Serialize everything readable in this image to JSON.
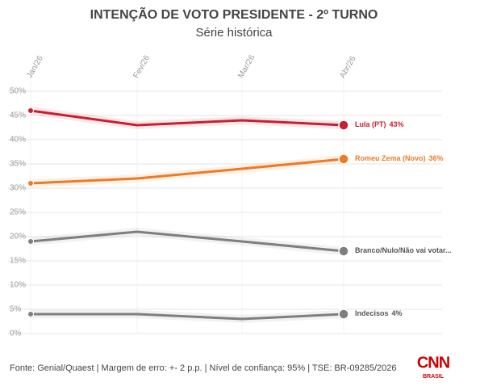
{
  "chart_data": {
    "type": "line",
    "title": "INTENÇÃO DE VOTO PRESIDENTE - 2º TURNO",
    "subtitle": "Série histórica",
    "categories": [
      "Jan/26",
      "Fev/26",
      "Mar/26",
      "Abr/26"
    ],
    "series": [
      {
        "name": "Lula (PT)",
        "color": "#c8202f",
        "values": [
          46,
          43,
          44,
          43
        ],
        "value_labels": [
          null,
          null,
          null,
          "43%"
        ]
      },
      {
        "name": "Romeu Zema (Novo)",
        "color": "#f07a22",
        "values": [
          31,
          32,
          34,
          36
        ],
        "value_labels": [
          null,
          null,
          null,
          "36%"
        ]
      },
      {
        "name": "Branco/Nulo/Não vai votar...",
        "color": "#7f7f7f",
        "values": [
          19,
          21,
          19,
          17
        ]
      },
      {
        "name": "Indecisos",
        "color": "#7f7f7f",
        "values": [
          4,
          4,
          3,
          4
        ],
        "value_labels": [
          null,
          null,
          null,
          "4%"
        ]
      }
    ],
    "ylim": [
      0,
      50
    ],
    "yticks": [
      {
        "value": 0,
        "label": "0%"
      },
      {
        "value": 5,
        "label": "5%"
      },
      {
        "value": 10,
        "label": "10%"
      },
      {
        "value": 15,
        "label": "15%"
      },
      {
        "value": 20,
        "label": "20%"
      },
      {
        "value": 25,
        "label": "25%"
      },
      {
        "value": 30,
        "label": "30%"
      },
      {
        "value": 35,
        "label": "35%"
      },
      {
        "value": 40,
        "label": "40%"
      },
      {
        "value": 45,
        "label": "45%"
      },
      {
        "value": 50,
        "label": "50%"
      }
    ],
    "grid": true,
    "source": "Fonte: Genial/Quaest | Margem de erro: +- 2 p.p. | Nível de confiança: 95% | TSE: BR-09285/2026",
    "logo": {
      "name": "CNN",
      "sub": "BRASIL"
    }
  }
}
